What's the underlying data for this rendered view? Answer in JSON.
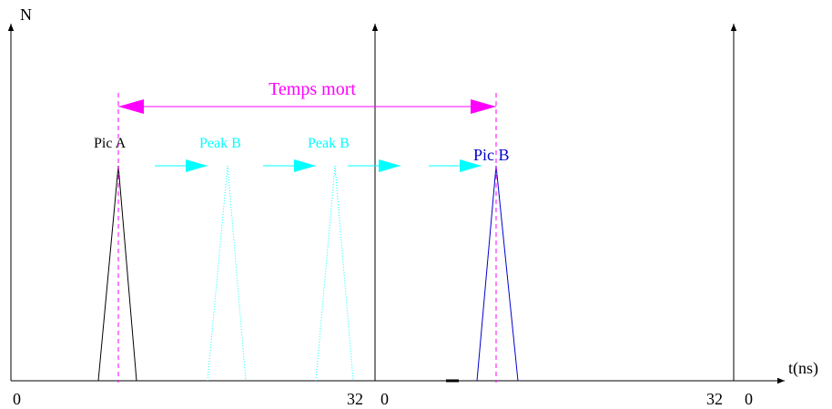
{
  "axis_labels": {
    "y": "N",
    "x": "t(ns)"
  },
  "ticks": {
    "origin_1": "0",
    "end_1": "32",
    "origin_2": "0",
    "end_2": "32",
    "origin_3": "0"
  },
  "annotation": {
    "dead_time": "Temps mort"
  },
  "peaks": {
    "pic_a": "Pic A",
    "peak_b_ghost_1": "Peak B",
    "peak_b_ghost_2": "Peak B",
    "pic_b": "Pic B"
  },
  "colors": {
    "axis": "#000000",
    "pic_a": "#000000",
    "ghost": "#00FFFF",
    "pic_b": "#0000CC",
    "dead_time": "#FF00FF"
  }
}
